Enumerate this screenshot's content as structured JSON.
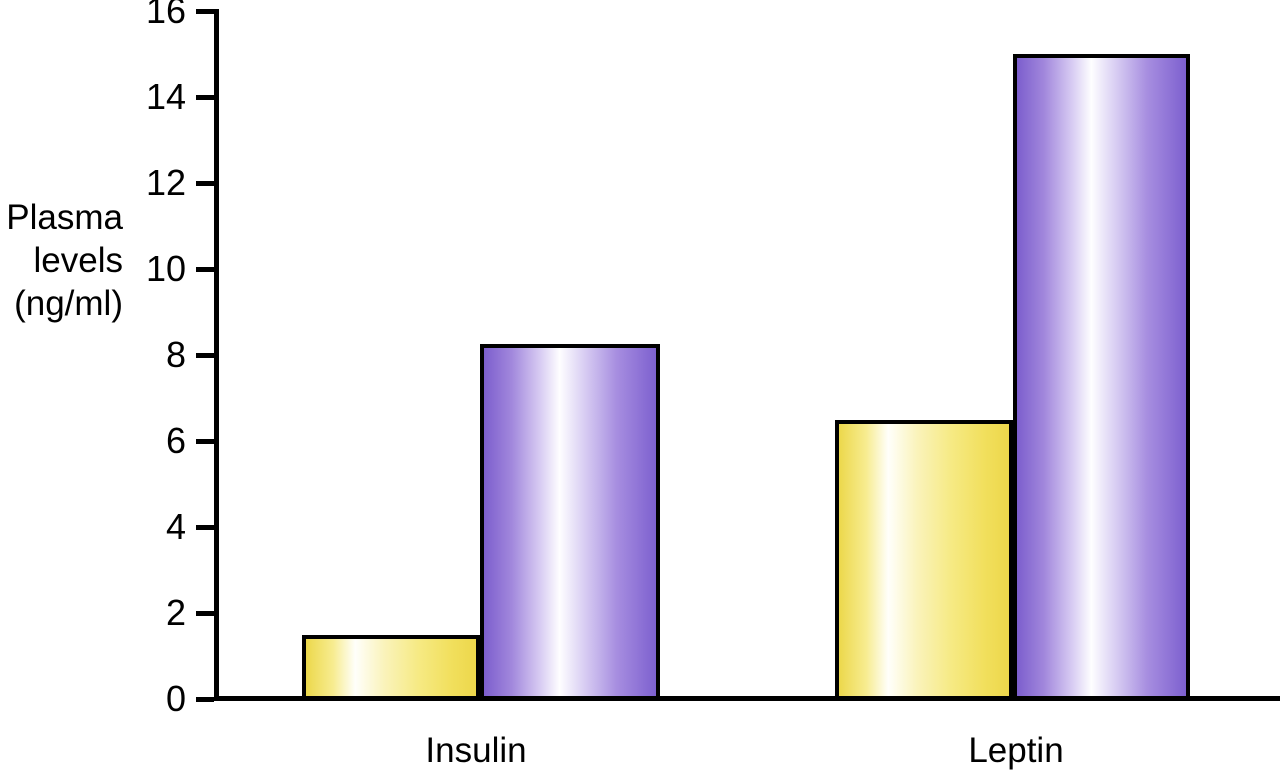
{
  "chart_data": {
    "type": "bar",
    "title": "",
    "xlabel": "",
    "ylabel": "Plasma levels (ng/ml)",
    "ylabel_display": "Plasma\nlevels\n(ng/ml)",
    "ylim": [
      0,
      16
    ],
    "yticks": [
      0,
      2,
      4,
      6,
      8,
      10,
      12,
      14,
      16
    ],
    "grid": false,
    "legend": false,
    "categories": [
      "Insulin",
      "Leptin"
    ],
    "series": [
      {
        "name": "yellow-bar-series",
        "values": [
          1.5,
          6.5
        ],
        "edge_color": "#ecd84b",
        "highlight_color": "#fffffb",
        "gradient_stops": [
          [
            "#ecd84b",
            0
          ],
          [
            "#f7ec90",
            16
          ],
          [
            "#fffffb",
            29
          ],
          [
            "#faf3bb",
            46
          ],
          [
            "#f6ea84",
            66
          ],
          [
            "#f1df5c",
            86
          ],
          [
            "#edd74b",
            100
          ]
        ]
      },
      {
        "name": "purple-bar-series",
        "values": [
          8.25,
          15
        ],
        "edge_color": "#7c5ecd",
        "highlight_color": "#fefeff",
        "gradient_stops": [
          [
            "#7c5ecd",
            0
          ],
          [
            "#a187dc",
            16
          ],
          [
            "#d9cdf3",
            33
          ],
          [
            "#fefeff",
            44
          ],
          [
            "#dcd2f4",
            57
          ],
          [
            "#a78ee0",
            77
          ],
          [
            "#7d60cf",
            100
          ]
        ]
      }
    ],
    "axis_color": "#000000",
    "background_color": "#ffffff"
  }
}
